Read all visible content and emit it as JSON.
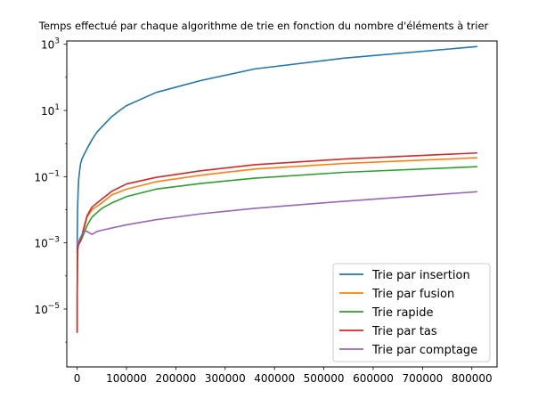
{
  "chart_data": {
    "type": "line",
    "title": "Temps effectué par chaque algorithme de trie  en fonction du nombre d'éléments à trier",
    "xlabel": "",
    "ylabel": "",
    "yscale": "log",
    "xlim": [
      -21000,
      851000
    ],
    "ylim_exp": [
      -6.75,
      3.1
    ],
    "x_ticks": [
      0,
      100000,
      200000,
      300000,
      400000,
      500000,
      600000,
      700000,
      800000
    ],
    "x_tick_labels": [
      "0",
      "100000",
      "200000",
      "300000",
      "400000",
      "500000",
      "600000",
      "700000",
      "800000"
    ],
    "y_ticks_exp": [
      -5,
      -3,
      -1,
      1,
      3
    ],
    "y_tick_base": "10",
    "y_tick_exponents": [
      "−5",
      "−3",
      "−1",
      "1",
      "3"
    ],
    "grid": false,
    "legend_position": "lower-right",
    "series": [
      {
        "name": "Trie par insertion",
        "color": "#1f77b4",
        "x": [
          10,
          100,
          500,
          1000,
          2000,
          3000,
          5000,
          7000,
          10000,
          15000,
          20000,
          30000,
          40000,
          50000,
          70000,
          90000,
          100000,
          120000,
          160000,
          250000,
          360000,
          540000,
          810000
        ],
        "y": [
          0.0005,
          0.0012,
          0.004,
          0.012,
          0.04,
          0.08,
          0.15,
          0.25,
          0.35,
          0.5,
          0.7,
          1.3,
          2.2,
          3.2,
          6.5,
          11,
          14,
          19,
          35,
          80,
          180,
          380,
          850
        ]
      },
      {
        "name": "Trie par fusion",
        "color": "#ff7f0e",
        "x": [
          10,
          100,
          500,
          1000,
          2000,
          3000,
          5000,
          10000,
          20000,
          30000,
          50000,
          70000,
          100000,
          160000,
          250000,
          360000,
          540000,
          810000
        ],
        "y": [
          2e-06,
          3e-05,
          0.0003,
          0.0006,
          0.0008,
          0.0009,
          0.001,
          0.0016,
          0.006,
          0.01,
          0.016,
          0.028,
          0.042,
          0.07,
          0.11,
          0.17,
          0.25,
          0.37
        ]
      },
      {
        "name": "Trie rapide",
        "color": "#2ca02c",
        "x": [
          10,
          100,
          500,
          1000,
          2000,
          3000,
          5000,
          10000,
          20000,
          30000,
          50000,
          70000,
          100000,
          160000,
          250000,
          360000,
          540000,
          810000
        ],
        "y": [
          2e-06,
          3e-05,
          0.0003,
          0.0006,
          0.0008,
          0.0009,
          0.001,
          0.0014,
          0.0033,
          0.006,
          0.011,
          0.016,
          0.025,
          0.042,
          0.062,
          0.09,
          0.135,
          0.2
        ]
      },
      {
        "name": "Trie par tas",
        "color": "#d62728",
        "x": [
          10,
          100,
          500,
          1000,
          2000,
          3000,
          5000,
          10000,
          20000,
          30000,
          50000,
          70000,
          100000,
          160000,
          250000,
          360000,
          540000,
          810000
        ],
        "y": [
          2e-06,
          3e-05,
          0.0003,
          0.0006,
          0.0008,
          0.0009,
          0.001,
          0.0018,
          0.0065,
          0.012,
          0.021,
          0.036,
          0.06,
          0.095,
          0.15,
          0.23,
          0.34,
          0.52
        ]
      },
      {
        "name": "Trie par comptage",
        "color": "#9467bd",
        "x": [
          10,
          100,
          500,
          1000,
          2000,
          3000,
          5000,
          10000,
          15000,
          20000,
          30000,
          40000,
          50000,
          70000,
          100000,
          160000,
          250000,
          360000,
          540000,
          810000
        ],
        "y": [
          0.0012,
          0.0011,
          0.0009,
          0.0009,
          0.001,
          0.0011,
          0.0013,
          0.0018,
          0.0023,
          0.0022,
          0.0018,
          0.0022,
          0.0024,
          0.0028,
          0.0035,
          0.005,
          0.0075,
          0.011,
          0.018,
          0.035
        ]
      }
    ]
  }
}
